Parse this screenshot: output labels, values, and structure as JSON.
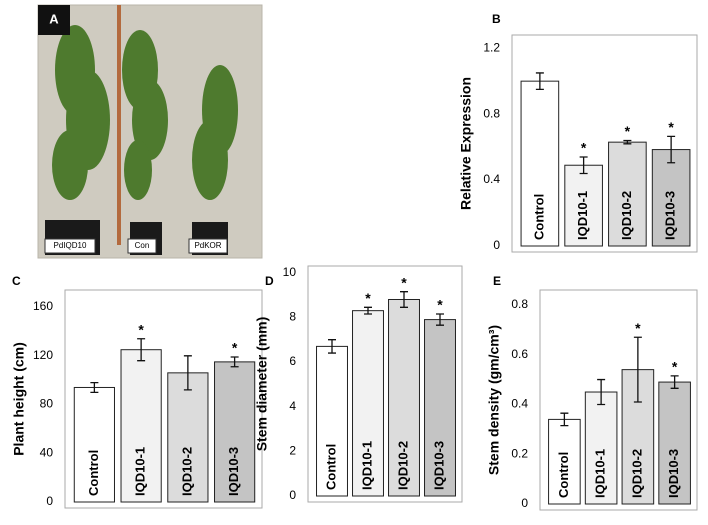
{
  "photo": {
    "label": "A",
    "tags": [
      "PdIQD10",
      "Con",
      "PdKOR"
    ]
  },
  "chart_data": [
    {
      "type": "bar",
      "panel": "B",
      "y_label": "Relative Expression",
      "categories": [
        "Control",
        "IQD10-1",
        "IQD10-2",
        "IQD10-3"
      ],
      "values": [
        1.0,
        0.49,
        0.63,
        0.585
      ],
      "errors": [
        0.05,
        0.05,
        0.01,
        0.08
      ],
      "colors": [
        "#ffffff",
        "#f2f2f2",
        "#dcdcdc",
        "#c4c4c4"
      ],
      "ylim": [
        0,
        1.28
      ],
      "yticks": [
        0,
        0.4,
        0.8,
        1.2
      ],
      "annotations": [
        {
          "x": "IQD10-1",
          "text": "*"
        },
        {
          "x": "IQD10-2",
          "text": "*"
        },
        {
          "x": "IQD10-3",
          "text": "*"
        }
      ]
    },
    {
      "type": "bar",
      "panel": "C",
      "y_label": "Plant height (cm)",
      "categories": [
        "Control",
        "IQD10-1",
        "IQD10-2",
        "IQD10-3"
      ],
      "values": [
        94,
        125,
        106,
        115
      ],
      "errors": [
        4,
        9,
        14,
        4
      ],
      "colors": [
        "#ffffff",
        "#f2f2f2",
        "#dcdcdc",
        "#c4c4c4"
      ],
      "ylim": [
        0,
        174
      ],
      "yticks": [
        0,
        40,
        80,
        120,
        160
      ],
      "annotations": [
        {
          "x": "IQD10-1",
          "text": "*"
        },
        {
          "x": "IQD10-3",
          "text": "*"
        }
      ]
    },
    {
      "type": "bar",
      "panel": "D",
      "y_label": "Stem diameter (mm)",
      "categories": [
        "Control",
        "IQD10-1",
        "IQD10-2",
        "IQD10-3"
      ],
      "values": [
        6.7,
        8.3,
        8.8,
        7.9
      ],
      "errors": [
        0.3,
        0.15,
        0.35,
        0.25
      ],
      "colors": [
        "#ffffff",
        "#f2f2f2",
        "#dcdcdc",
        "#c4c4c4"
      ],
      "ylim": [
        0,
        10.3
      ],
      "yticks": [
        0,
        2,
        4,
        6,
        8,
        10
      ],
      "annotations": [
        {
          "x": "IQD10-1",
          "text": "*"
        },
        {
          "x": "IQD10-2",
          "text": "*"
        },
        {
          "x": "IQD10-3",
          "text": "*"
        }
      ]
    },
    {
      "type": "bar",
      "panel": "E",
      "y_label": "Stem density (gm/cm³)",
      "categories": [
        "Control",
        "IQD10-1",
        "IQD10-2",
        "IQD10-3"
      ],
      "values": [
        0.34,
        0.45,
        0.54,
        0.49
      ],
      "errors": [
        0.025,
        0.05,
        0.13,
        0.025
      ],
      "colors": [
        "#ffffff",
        "#f2f2f2",
        "#dcdcdc",
        "#c4c4c4"
      ],
      "ylim": [
        0,
        0.86
      ],
      "yticks": [
        0,
        0.2,
        0.4,
        0.6,
        0.8
      ],
      "annotations": [
        {
          "x": "IQD10-2",
          "text": "*"
        },
        {
          "x": "IQD10-3",
          "text": "*"
        }
      ]
    }
  ]
}
